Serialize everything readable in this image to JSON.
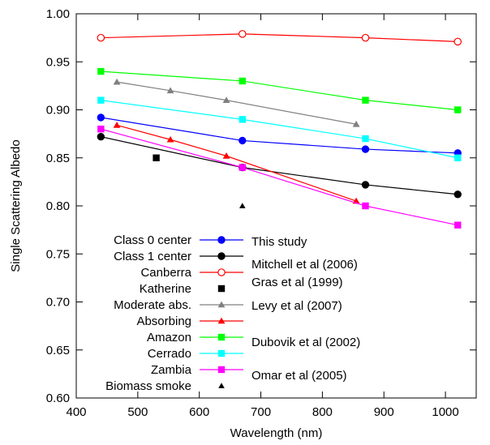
{
  "chart_data": {
    "type": "line",
    "xlabel": "Wavelength (nm)",
    "ylabel": "Single Scattering Albedo",
    "xlim": [
      400,
      1050
    ],
    "ylim": [
      0.6,
      1.0
    ],
    "xticks": [
      400,
      500,
      600,
      700,
      800,
      900,
      1000
    ],
    "yticks": [
      0.6,
      0.65,
      0.7,
      0.75,
      0.8,
      0.85,
      0.9,
      0.95,
      1.0
    ],
    "xtick_labels": [
      "400",
      "500",
      "600",
      "700",
      "800",
      "900",
      "1000"
    ],
    "ytick_labels": [
      "0.60",
      "0.65",
      "0.70",
      "0.75",
      "0.80",
      "0.85",
      "0.90",
      "0.95",
      "1.00"
    ],
    "grid": false,
    "legend_placement": "lower-left",
    "series": [
      {
        "name": "Class 0 center",
        "color": "#0000ff",
        "marker": "circle",
        "line": true,
        "x": [
          440,
          670,
          870,
          1020
        ],
        "y": [
          0.892,
          0.868,
          0.859,
          0.855
        ]
      },
      {
        "name": "Class 1 center",
        "color": "#000000",
        "marker": "circle",
        "line": true,
        "x": [
          440,
          670,
          870,
          1020
        ],
        "y": [
          0.872,
          0.84,
          0.822,
          0.812
        ]
      },
      {
        "name": "Canberra",
        "color": "#ff0000",
        "marker": "open-circle",
        "line": true,
        "x": [
          440,
          670,
          870,
          1020
        ],
        "y": [
          0.975,
          0.979,
          0.975,
          0.971
        ]
      },
      {
        "name": "Katherine",
        "color": "#000000",
        "marker": "square",
        "line": false,
        "x": [
          530
        ],
        "y": [
          0.85
        ]
      },
      {
        "name": "Moderate abs.",
        "color": "#808080",
        "marker": "triangle",
        "line": true,
        "x": [
          466,
          553,
          644,
          855
        ],
        "y": [
          0.929,
          0.92,
          0.91,
          0.885
        ]
      },
      {
        "name": "Absorbing",
        "color": "#ff0000",
        "marker": "triangle",
        "line": true,
        "x": [
          466,
          553,
          644,
          855
        ],
        "y": [
          0.884,
          0.869,
          0.852,
          0.805
        ]
      },
      {
        "name": "Amazon",
        "color": "#00ff00",
        "marker": "square",
        "line": true,
        "x": [
          440,
          670,
          870,
          1020
        ],
        "y": [
          0.94,
          0.93,
          0.91,
          0.9
        ]
      },
      {
        "name": "Cerrado",
        "color": "#00ffff",
        "marker": "square",
        "line": true,
        "x": [
          440,
          670,
          870,
          1020
        ],
        "y": [
          0.91,
          0.89,
          0.87,
          0.85
        ]
      },
      {
        "name": "Zambia",
        "color": "#ff00ff",
        "marker": "square",
        "line": true,
        "x": [
          440,
          670,
          870,
          1020
        ],
        "y": [
          0.88,
          0.84,
          0.8,
          0.78
        ]
      },
      {
        "name": "Biomass smoke",
        "color": "#000000",
        "marker": "triangle",
        "line": false,
        "x": [
          670
        ],
        "y": [
          0.8
        ]
      }
    ],
    "legend_sources": [
      "This study",
      "Mitchell et al (2006)",
      "Gras et al (1999)",
      "Levy et al (2007)",
      "Dubovik et al (2002)",
      "Omar et al (2005)"
    ]
  }
}
